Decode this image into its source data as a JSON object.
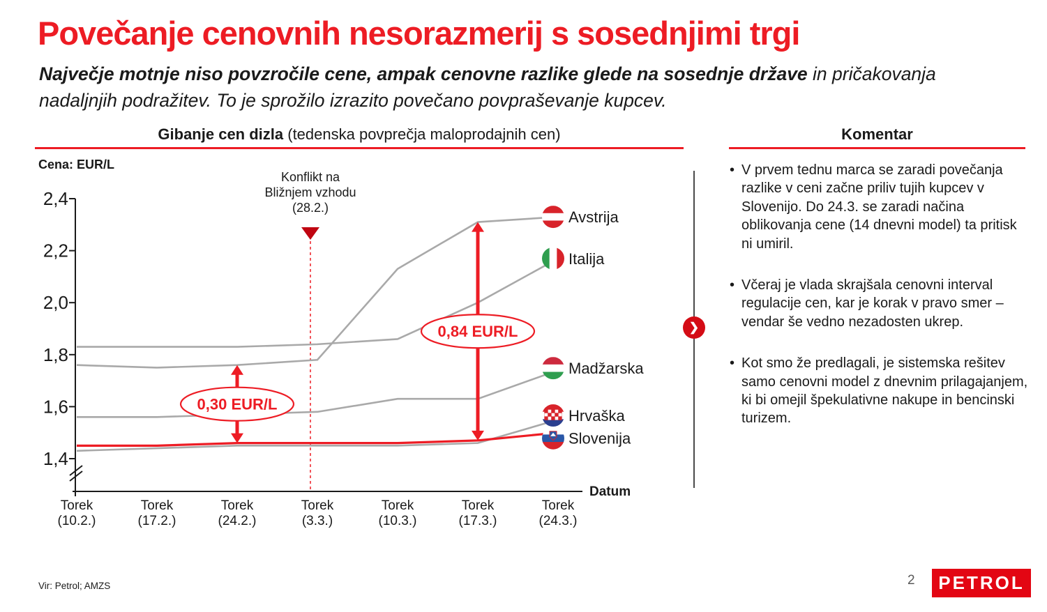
{
  "slide": {
    "title": "Povečanje cenovnih nesorazmerij s sosednjimi trgi",
    "subtitle_bold": "Največje motnje niso povzročile cene, ampak cenovne razlike glede na sosednje države",
    "subtitle_rest": " in pričakovanja nadaljnjih podražitev. To je sprožilo izrazito povečano povpraševanje kupcev."
  },
  "chart_header": {
    "title_bold": "Gibanje cen dizla",
    "title_rest": " (tedenska povprečja maloprodajnih cen)",
    "unit_label": "Cena: EUR/L",
    "x_axis_title": "Datum"
  },
  "comment": {
    "title": "Komentar",
    "bullets": [
      "V prvem tednu marca se zaradi povečanja razlike v ceni začne priliv tujih kupcev v Slovenijo. Do 24.3. se zaradi načina oblikovanja cene (14 dnevni model) ta pritisk ni umiril.",
      "Včeraj je vlada skrajšala cenovni interval regulacije cen, kar je korak v pravo smer – vendar še vedno nezadosten ukrep.",
      "Kot smo že predlagali, je sistemska rešitev samo cenovni model z dnevnim prilagajanjem, ki bi omejil špekulativne nakupe in bencinski turizem."
    ],
    "bullet_glyph": "•"
  },
  "footer": {
    "source": "Vir: Petrol; AMZS",
    "page_number": "2",
    "logo_text": "PETROL"
  },
  "colors": {
    "accent_red": "#ed1c24",
    "marker_red": "#c00511",
    "chevron_red": "#d40c15",
    "logo_red": "#e30613",
    "line_gray": "#a9a9a9"
  },
  "icons": {
    "chevron_right": "❯"
  },
  "chart_data": {
    "type": "line",
    "title": "Gibanje cen dizla (tedenska povprečja maloprodajnih cen)",
    "ylabel": "Cena: EUR/L",
    "xlabel": "Datum",
    "ylim": [
      1.4,
      2.4
    ],
    "ytick_labels": [
      "2,4",
      "2,2",
      "2,0",
      "1,8",
      "1,6",
      "1,4"
    ],
    "axis_break": true,
    "grid": false,
    "legend_position": "right-flags",
    "categories": [
      "Torek (10.2.)",
      "Torek (17.2.)",
      "Torek (24.2.)",
      "Torek (3.3.)",
      "Torek (10.3.)",
      "Torek (17.3.)",
      "Torek (24.3.)"
    ],
    "series": [
      {
        "name": "Avstrija",
        "color": "#a9a9a9",
        "flag": "austria",
        "values": [
          1.76,
          1.75,
          1.76,
          1.78,
          2.13,
          2.31,
          2.33
        ]
      },
      {
        "name": "Italija",
        "color": "#a9a9a9",
        "flag": "italy",
        "values": [
          1.83,
          1.83,
          1.83,
          1.84,
          1.86,
          2.0,
          2.17
        ]
      },
      {
        "name": "Madžarska",
        "color": "#a9a9a9",
        "flag": "hungary",
        "values": [
          1.56,
          1.56,
          1.57,
          1.58,
          1.63,
          1.63,
          1.74
        ]
      },
      {
        "name": "Hrvaška",
        "color": "#a9a9a9",
        "flag": "croatia",
        "values": [
          1.43,
          1.44,
          1.45,
          1.45,
          1.45,
          1.46,
          1.55
        ]
      },
      {
        "name": "Slovenija",
        "color": "#ed1c24",
        "flag": "slovenia",
        "values": [
          1.45,
          1.45,
          1.46,
          1.46,
          1.46,
          1.47,
          1.5
        ]
      }
    ],
    "annotations": {
      "event_marker": {
        "lines": [
          "Konflikt na",
          "Bližnjem vzhodu",
          "(28.2.)"
        ],
        "between_categories": [
          "Torek (24.2.)",
          "Torek (3.3.)"
        ]
      },
      "measurements": [
        {
          "label": "0,30 EUR/L",
          "at": "Torek (24.2.)",
          "from_value": 1.46,
          "to_value": 1.76
        },
        {
          "label": "0,84 EUR/L",
          "at": "Torek (17.3.)",
          "from_value": 1.47,
          "to_value": 2.31
        }
      ]
    }
  }
}
